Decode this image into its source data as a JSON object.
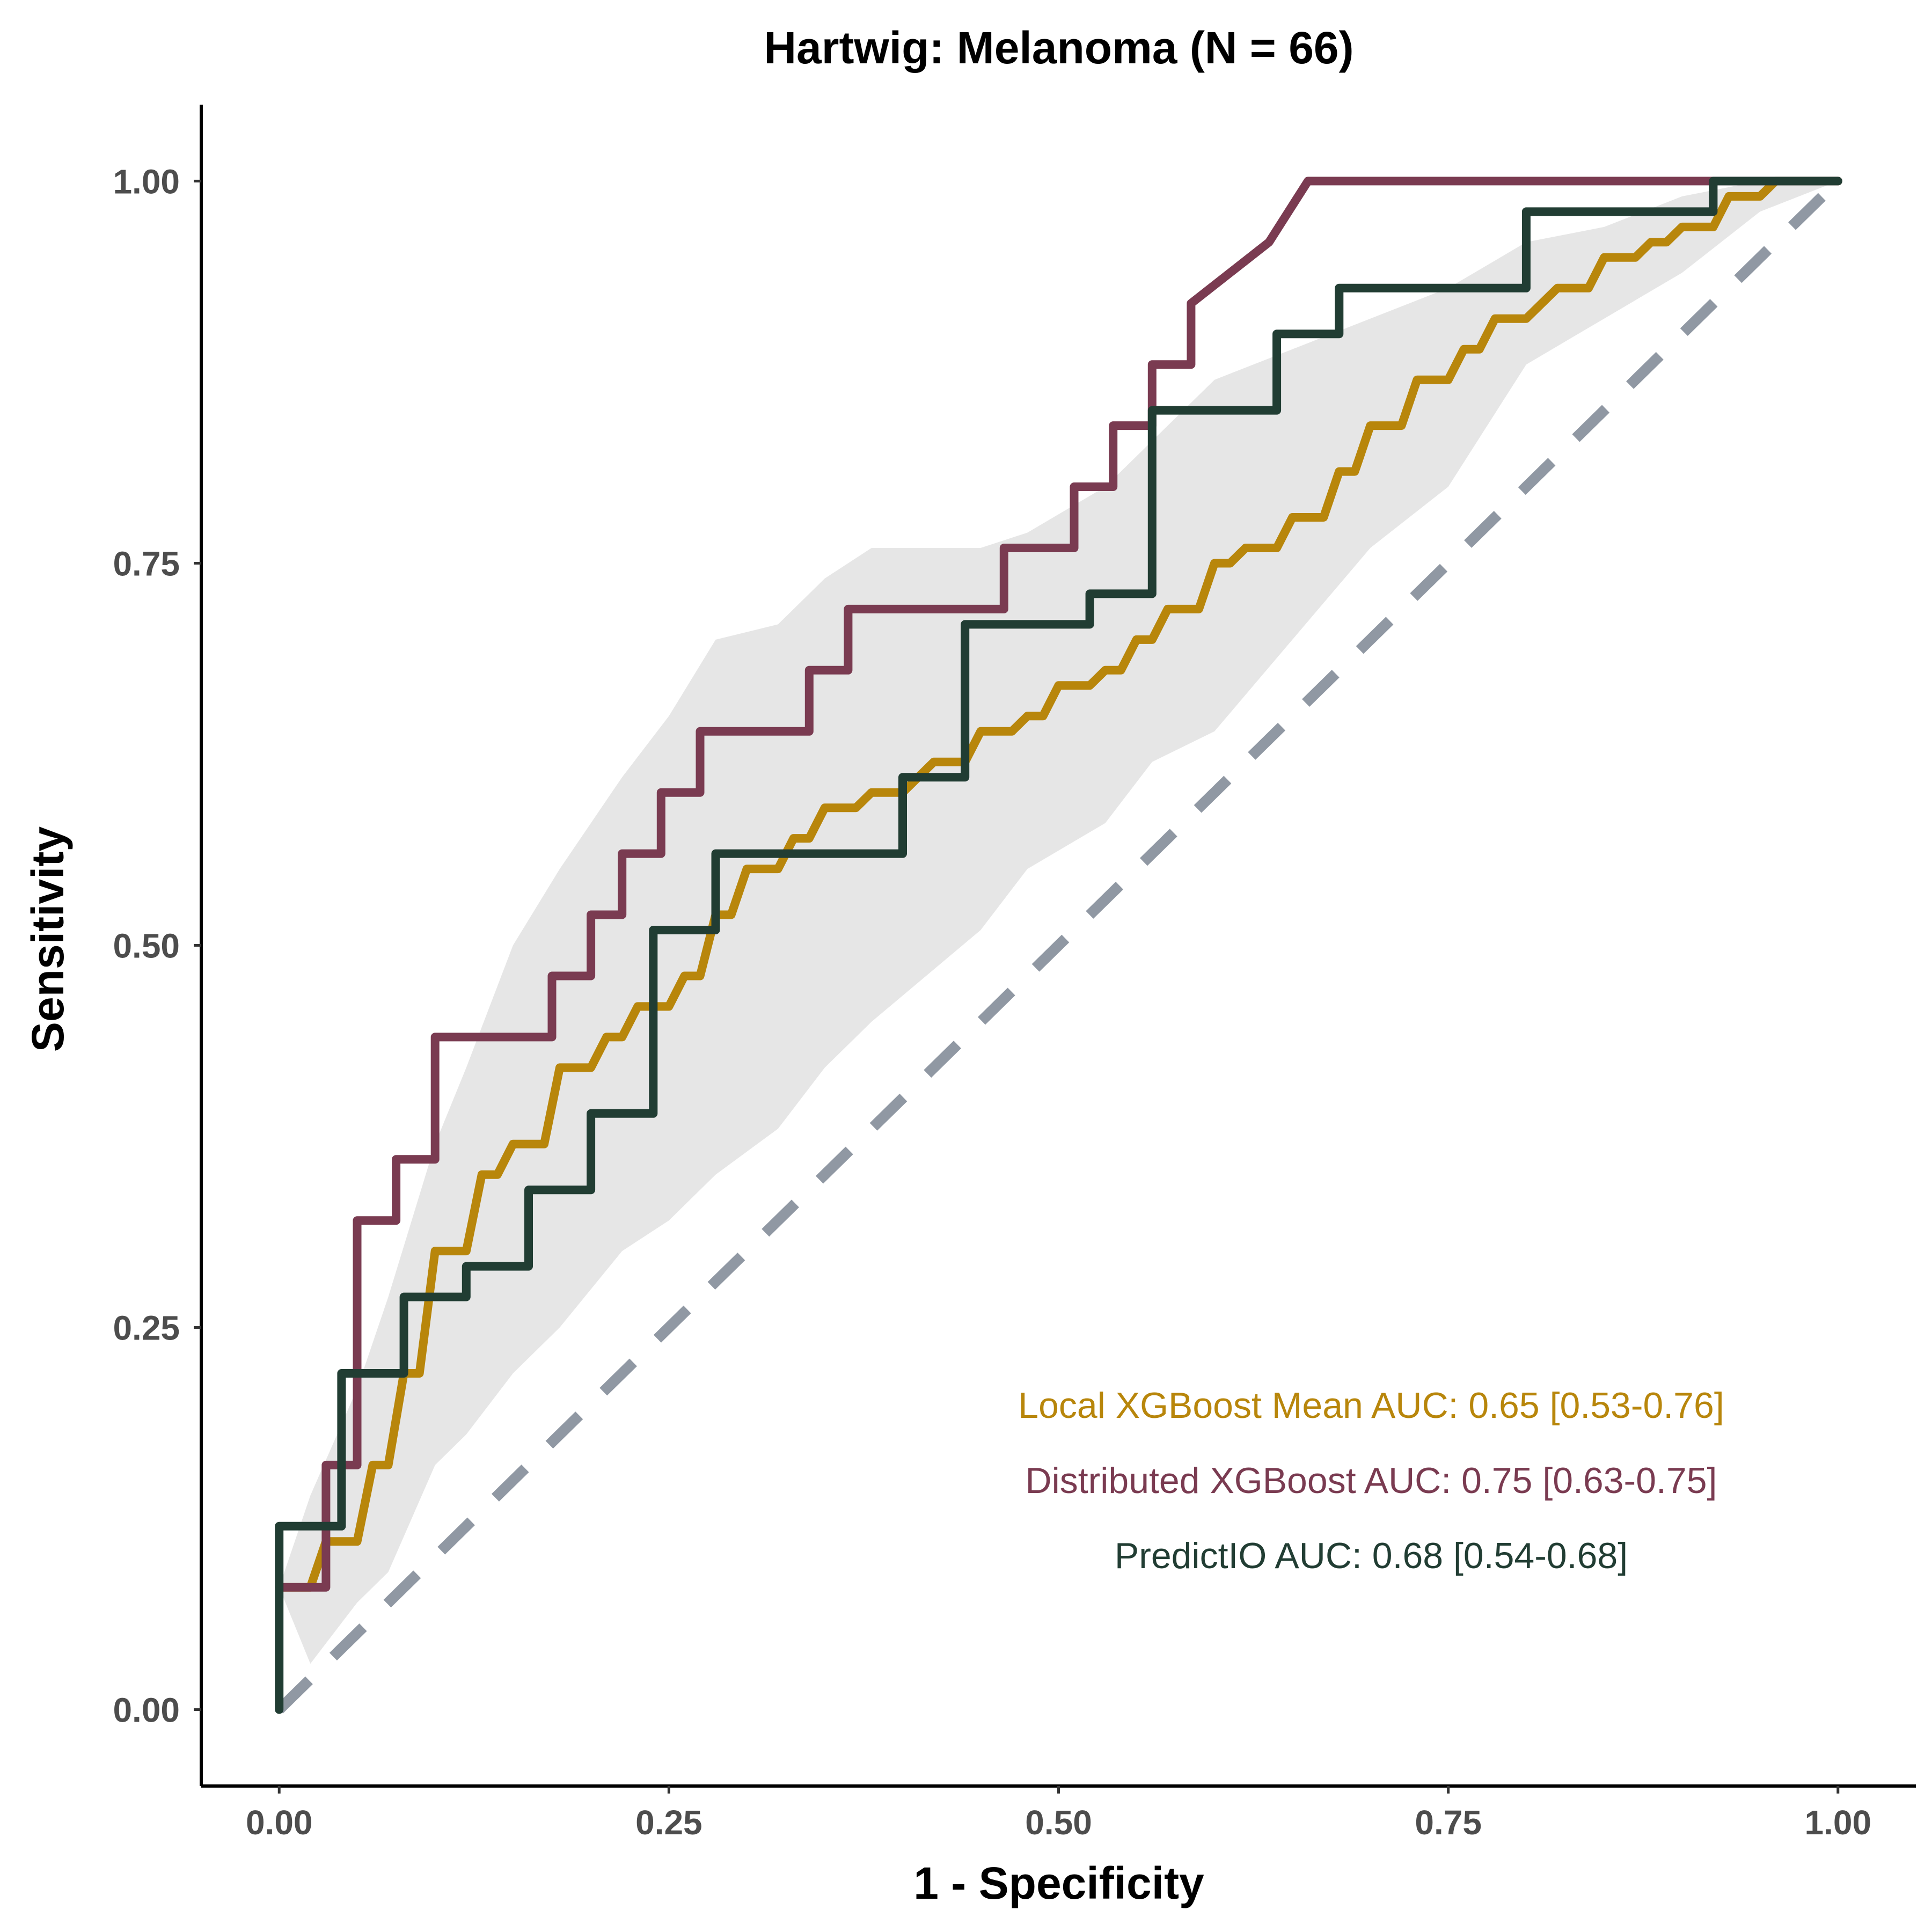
{
  "chart_data": {
    "type": "line",
    "title": "Hartwig: Melanoma (N = 66)",
    "xlabel": "1 - Specificity",
    "ylabel": "Sensitivity",
    "xlim": [
      -0.05,
      1.05
    ],
    "ylim": [
      -0.05,
      1.05
    ],
    "xticks": [
      {
        "value": 0,
        "label": "0.00"
      },
      {
        "value": 0.25,
        "label": "0.25"
      },
      {
        "value": 0.5,
        "label": "0.50"
      },
      {
        "value": 0.75,
        "label": "0.75"
      },
      {
        "value": 1,
        "label": "1.00"
      }
    ],
    "yticks": [
      {
        "value": 0,
        "label": "0.00"
      },
      {
        "value": 0.25,
        "label": "0.25"
      },
      {
        "value": 0.5,
        "label": "0.50"
      },
      {
        "value": 0.75,
        "label": "0.75"
      },
      {
        "value": 1,
        "label": "1.00"
      }
    ],
    "grid": false,
    "legend_position": "bottom-right",
    "reference_line": {
      "from": [
        0,
        0
      ],
      "to": [
        1,
        1
      ],
      "color": "#9098a3",
      "style": "dashed"
    },
    "ci_band": {
      "color": "#e6e6e6",
      "points": [
        [
          0,
          0.08,
          0.08
        ],
        [
          0.02,
          0.03,
          0.14
        ],
        [
          0.05,
          0.07,
          0.21
        ],
        [
          0.07,
          0.09,
          0.27
        ],
        [
          0.1,
          0.16,
          0.37
        ],
        [
          0.12,
          0.18,
          0.42
        ],
        [
          0.15,
          0.22,
          0.5
        ],
        [
          0.18,
          0.25,
          0.55
        ],
        [
          0.22,
          0.3,
          0.61
        ],
        [
          0.25,
          0.32,
          0.65
        ],
        [
          0.28,
          0.35,
          0.7
        ],
        [
          0.32,
          0.38,
          0.71
        ],
        [
          0.35,
          0.42,
          0.74
        ],
        [
          0.38,
          0.45,
          0.76
        ],
        [
          0.45,
          0.51,
          0.76
        ],
        [
          0.48,
          0.55,
          0.77
        ],
        [
          0.53,
          0.58,
          0.8
        ],
        [
          0.56,
          0.62,
          0.83
        ],
        [
          0.6,
          0.64,
          0.87
        ],
        [
          0.65,
          0.7,
          0.89
        ],
        [
          0.7,
          0.76,
          0.91
        ],
        [
          0.75,
          0.8,
          0.93
        ],
        [
          0.8,
          0.88,
          0.96
        ],
        [
          0.85,
          0.91,
          0.97
        ],
        [
          0.9,
          0.94,
          0.99
        ],
        [
          0.95,
          0.98,
          1.0
        ],
        [
          1,
          1,
          1
        ]
      ]
    },
    "series": [
      {
        "name": "Local XGBoost Mean",
        "label": "Local XGBoost Mean AUC: 0.65 [0.53-0.76]",
        "color": "#b8860b",
        "points": [
          [
            0,
            0.08
          ],
          [
            0.02,
            0.08
          ],
          [
            0.03,
            0.11
          ],
          [
            0.05,
            0.11
          ],
          [
            0.06,
            0.16
          ],
          [
            0.07,
            0.16
          ],
          [
            0.08,
            0.22
          ],
          [
            0.09,
            0.22
          ],
          [
            0.1,
            0.3
          ],
          [
            0.12,
            0.3
          ],
          [
            0.13,
            0.35
          ],
          [
            0.14,
            0.35
          ],
          [
            0.15,
            0.37
          ],
          [
            0.17,
            0.37
          ],
          [
            0.18,
            0.42
          ],
          [
            0.2,
            0.42
          ],
          [
            0.21,
            0.44
          ],
          [
            0.22,
            0.44
          ],
          [
            0.23,
            0.46
          ],
          [
            0.25,
            0.46
          ],
          [
            0.26,
            0.48
          ],
          [
            0.27,
            0.48
          ],
          [
            0.28,
            0.52
          ],
          [
            0.29,
            0.52
          ],
          [
            0.3,
            0.55
          ],
          [
            0.32,
            0.55
          ],
          [
            0.33,
            0.57
          ],
          [
            0.34,
            0.57
          ],
          [
            0.35,
            0.59
          ],
          [
            0.37,
            0.59
          ],
          [
            0.38,
            0.6
          ],
          [
            0.4,
            0.6
          ],
          [
            0.42,
            0.62
          ],
          [
            0.44,
            0.62
          ],
          [
            0.45,
            0.64
          ],
          [
            0.47,
            0.64
          ],
          [
            0.48,
            0.65
          ],
          [
            0.49,
            0.65
          ],
          [
            0.5,
            0.67
          ],
          [
            0.52,
            0.67
          ],
          [
            0.53,
            0.68
          ],
          [
            0.54,
            0.68
          ],
          [
            0.55,
            0.7
          ],
          [
            0.56,
            0.7
          ],
          [
            0.57,
            0.72
          ],
          [
            0.59,
            0.72
          ],
          [
            0.6,
            0.75
          ],
          [
            0.61,
            0.75
          ],
          [
            0.62,
            0.76
          ],
          [
            0.64,
            0.76
          ],
          [
            0.65,
            0.78
          ],
          [
            0.67,
            0.78
          ],
          [
            0.68,
            0.81
          ],
          [
            0.69,
            0.81
          ],
          [
            0.7,
            0.84
          ],
          [
            0.72,
            0.84
          ],
          [
            0.73,
            0.87
          ],
          [
            0.75,
            0.87
          ],
          [
            0.76,
            0.89
          ],
          [
            0.77,
            0.89
          ],
          [
            0.78,
            0.91
          ],
          [
            0.8,
            0.91
          ],
          [
            0.82,
            0.93
          ],
          [
            0.84,
            0.93
          ],
          [
            0.85,
            0.95
          ],
          [
            0.87,
            0.95
          ],
          [
            0.88,
            0.96
          ],
          [
            0.89,
            0.96
          ],
          [
            0.9,
            0.97
          ],
          [
            0.92,
            0.97
          ],
          [
            0.93,
            0.99
          ],
          [
            0.95,
            0.99
          ],
          [
            0.96,
            1.0
          ],
          [
            1.0,
            1.0
          ]
        ]
      },
      {
        "name": "Distributed XGBoost",
        "label": "Distributed XGBoost AUC: 0.75 [0.63-0.75]",
        "color": "#7a3b51",
        "points": [
          [
            0,
            0.08
          ],
          [
            0.03,
            0.08
          ],
          [
            0.03,
            0.16
          ],
          [
            0.05,
            0.16
          ],
          [
            0.05,
            0.32
          ],
          [
            0.075,
            0.32
          ],
          [
            0.075,
            0.36
          ],
          [
            0.1,
            0.36
          ],
          [
            0.1,
            0.44
          ],
          [
            0.175,
            0.44
          ],
          [
            0.175,
            0.48
          ],
          [
            0.2,
            0.48
          ],
          [
            0.2,
            0.52
          ],
          [
            0.22,
            0.52
          ],
          [
            0.22,
            0.56
          ],
          [
            0.245,
            0.56
          ],
          [
            0.245,
            0.6
          ],
          [
            0.27,
            0.6
          ],
          [
            0.27,
            0.64
          ],
          [
            0.34,
            0.64
          ],
          [
            0.34,
            0.68
          ],
          [
            0.365,
            0.68
          ],
          [
            0.365,
            0.72
          ],
          [
            0.465,
            0.72
          ],
          [
            0.465,
            0.76
          ],
          [
            0.51,
            0.76
          ],
          [
            0.51,
            0.8
          ],
          [
            0.535,
            0.8
          ],
          [
            0.535,
            0.84
          ],
          [
            0.56,
            0.84
          ],
          [
            0.56,
            0.88
          ],
          [
            0.585,
            0.88
          ],
          [
            0.585,
            0.92
          ],
          [
            0.635,
            0.96
          ],
          [
            0.66,
            1.0
          ],
          [
            1.0,
            1.0
          ]
        ]
      },
      {
        "name": "PredictIO",
        "label": "PredictIO AUC: 0.68 [0.54-0.68]",
        "color": "#213d33",
        "points": [
          [
            0,
            0
          ],
          [
            0,
            0.12
          ],
          [
            0.04,
            0.12
          ],
          [
            0.04,
            0.22
          ],
          [
            0.08,
            0.22
          ],
          [
            0.08,
            0.27
          ],
          [
            0.12,
            0.27
          ],
          [
            0.12,
            0.29
          ],
          [
            0.16,
            0.29
          ],
          [
            0.16,
            0.34
          ],
          [
            0.2,
            0.34
          ],
          [
            0.2,
            0.39
          ],
          [
            0.24,
            0.39
          ],
          [
            0.24,
            0.51
          ],
          [
            0.28,
            0.51
          ],
          [
            0.28,
            0.56
          ],
          [
            0.4,
            0.56
          ],
          [
            0.4,
            0.61
          ],
          [
            0.44,
            0.61
          ],
          [
            0.44,
            0.71
          ],
          [
            0.52,
            0.71
          ],
          [
            0.52,
            0.73
          ],
          [
            0.56,
            0.73
          ],
          [
            0.56,
            0.85
          ],
          [
            0.64,
            0.85
          ],
          [
            0.64,
            0.9
          ],
          [
            0.68,
            0.9
          ],
          [
            0.68,
            0.93
          ],
          [
            0.8,
            0.93
          ],
          [
            0.8,
            0.98
          ],
          [
            0.92,
            0.98
          ],
          [
            0.92,
            1.0
          ],
          [
            1.0,
            1.0
          ]
        ]
      }
    ]
  }
}
